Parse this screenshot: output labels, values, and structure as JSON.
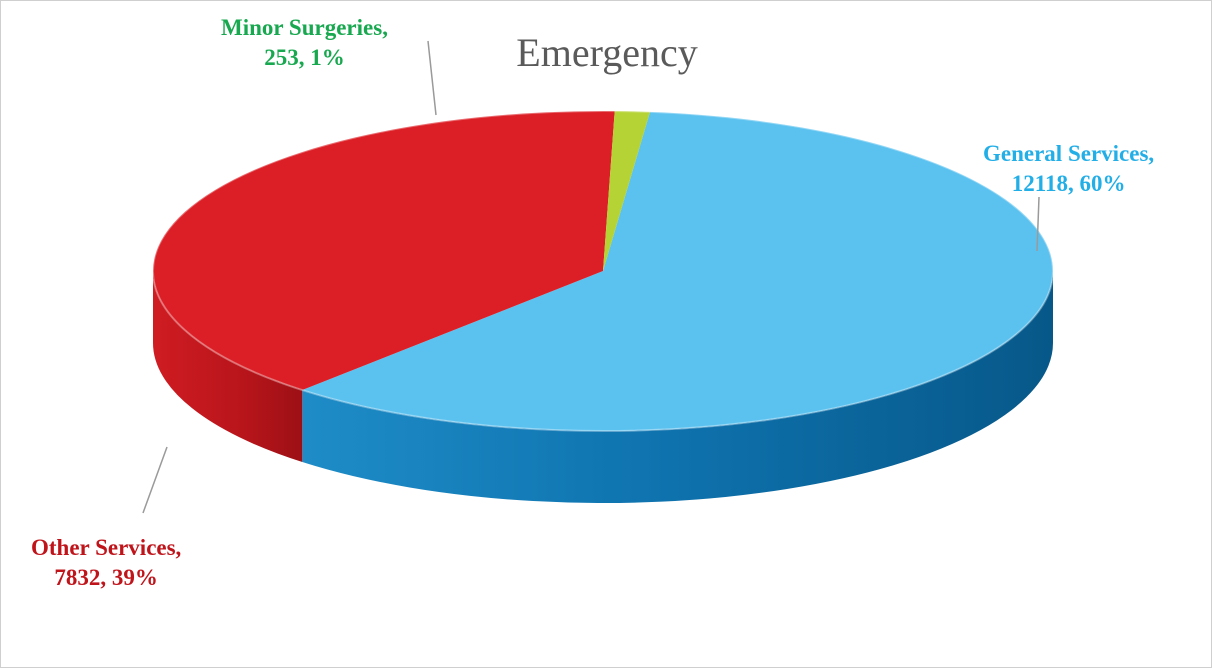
{
  "chart_data": {
    "type": "pie",
    "title": "Emergency",
    "slices": [
      {
        "name": "General Services",
        "value": 12118,
        "percent": "60%",
        "color": "#5BC2F0"
      },
      {
        "name": "Other Services",
        "value": 7832,
        "percent": "39%",
        "color": "#DC1F26"
      },
      {
        "name": "Minor Surgeries",
        "value": 253,
        "percent": "1%",
        "color": "#B5D334"
      }
    ],
    "label_colors": {
      "General Services": "#22AEE6",
      "Other Services": "#C0141B",
      "Minor Surgeries": "#18A84F"
    },
    "style": "3d",
    "legend": "none"
  },
  "labels": {
    "general": {
      "line1": "General Services,",
      "line2": "12118, 60%"
    },
    "other": {
      "line1": "Other Services,",
      "line2": "7832, 39%"
    },
    "minor": {
      "line1": "Minor Surgeries,",
      "line2": "253, 1%"
    }
  }
}
